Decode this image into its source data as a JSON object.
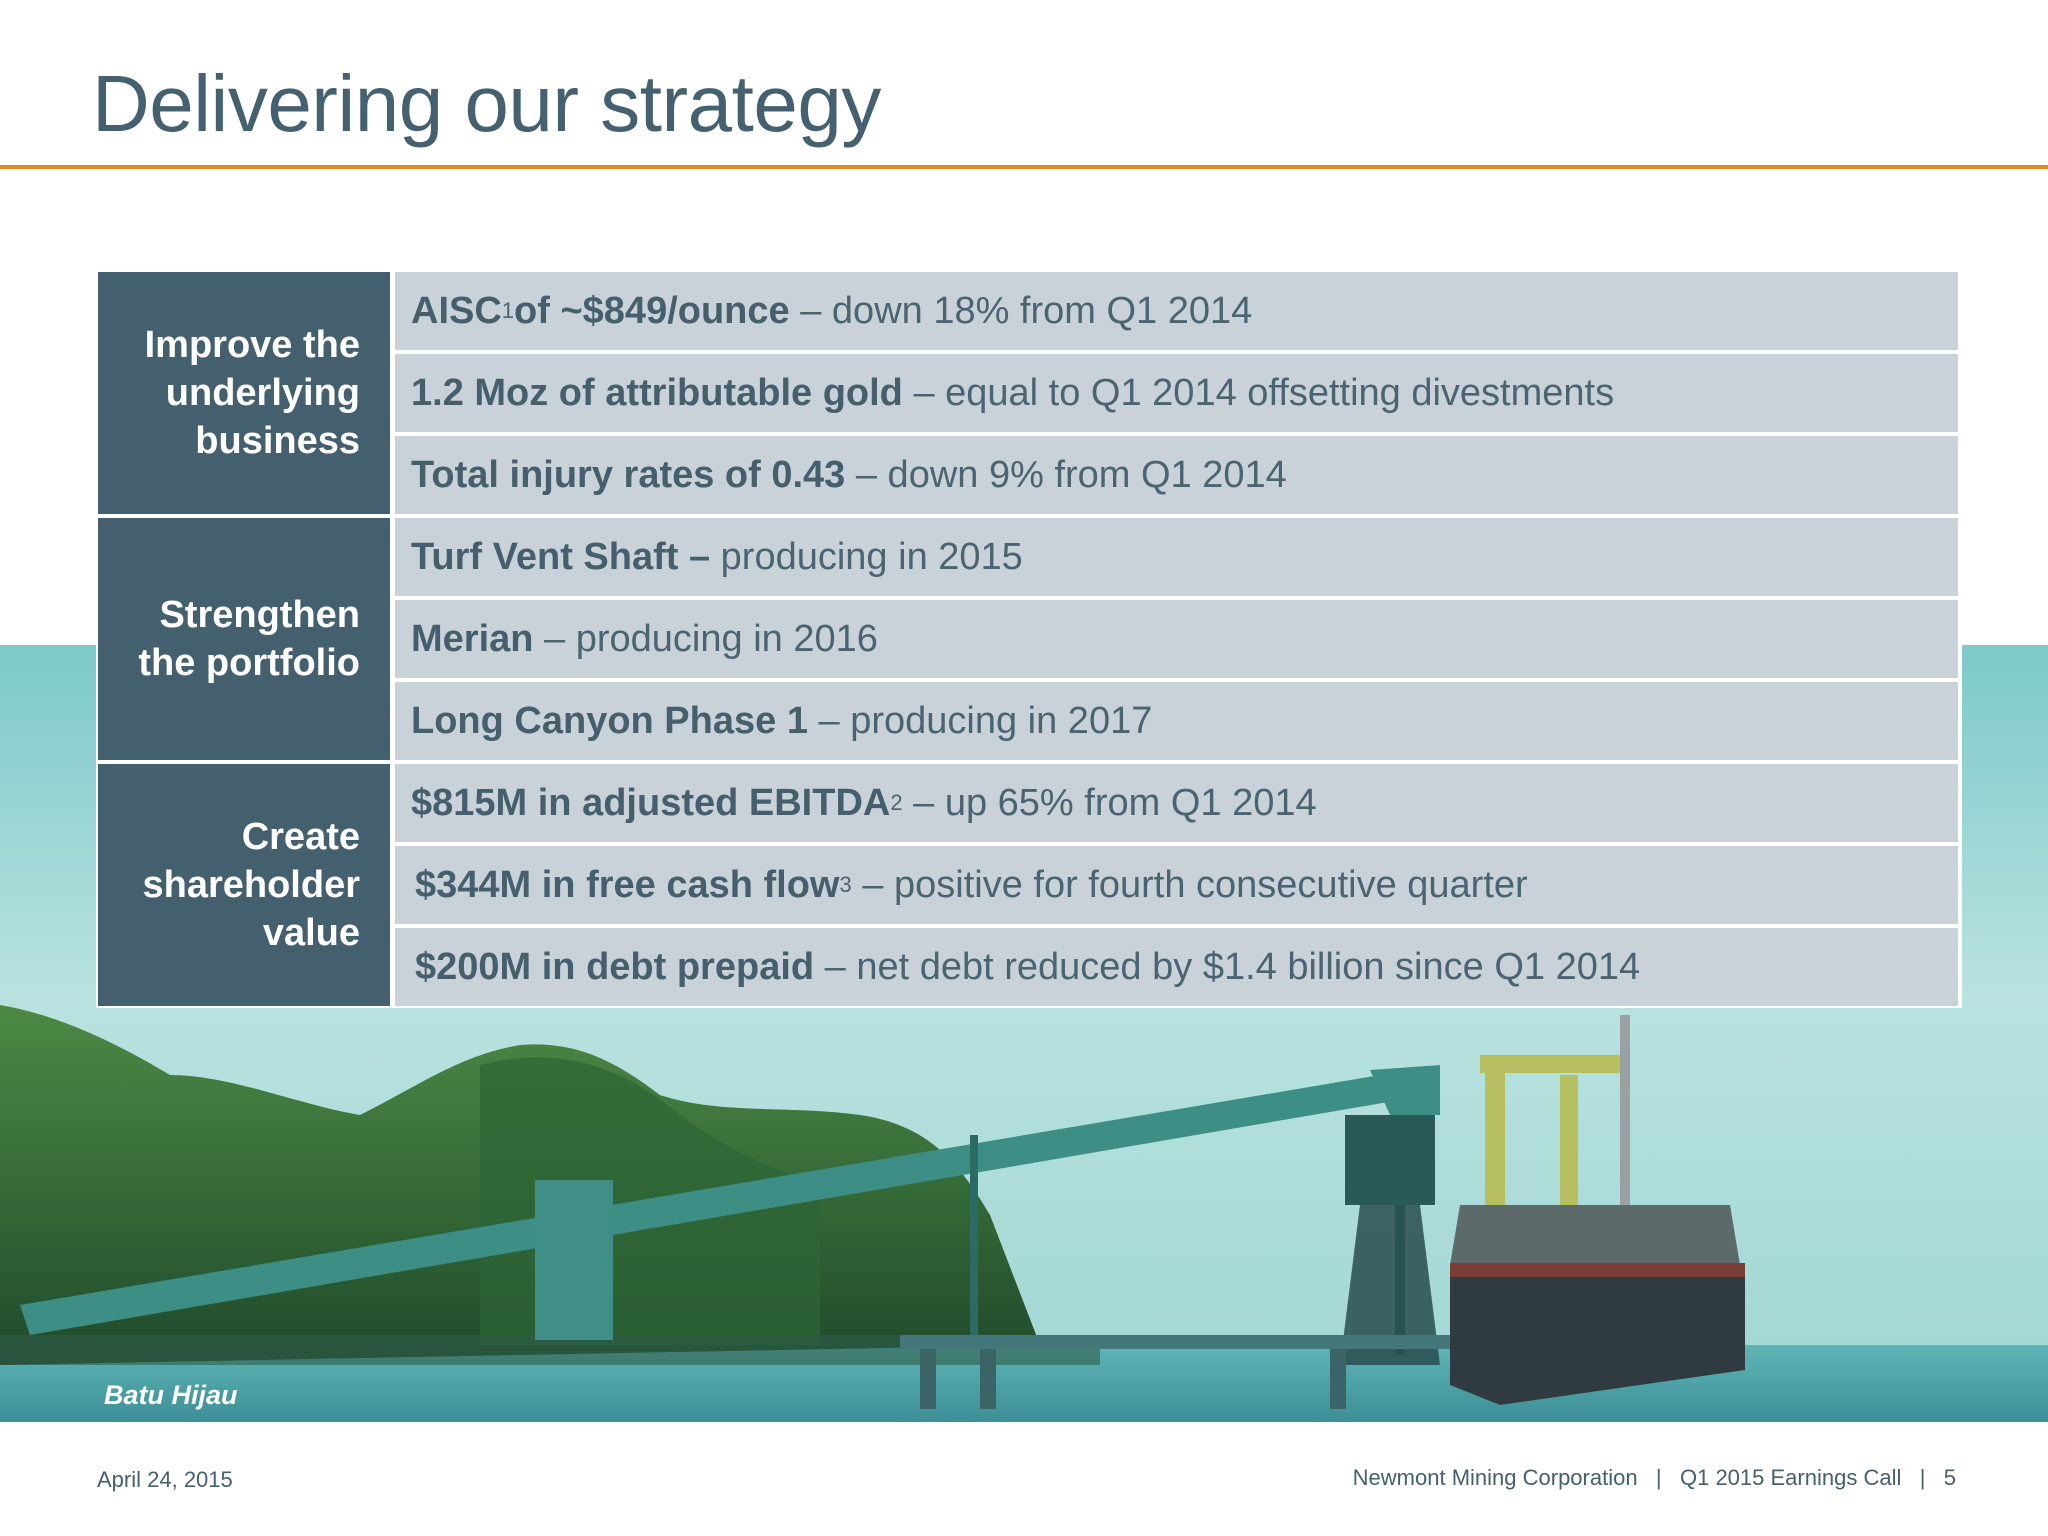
{
  "title": "Delivering our strategy",
  "groups": [
    {
      "category": "Improve the\nunderlying\nbusiness",
      "rows": [
        {
          "bold": "AISC",
          "sup": "1",
          "bold2": " of ~$849/ounce",
          "rest": " – down 18% from Q1 2014"
        },
        {
          "bold": "1.2 Moz of attributable gold",
          "sup": "",
          "bold2": "",
          "rest": " – equal to Q1 2014 offsetting divestments"
        },
        {
          "bold": "Total injury rates of 0.43",
          "sup": "",
          "bold2": "",
          "rest": " – down 9% from Q1 2014"
        }
      ]
    },
    {
      "category": "Strengthen\nthe portfolio",
      "rows": [
        {
          "bold": "Turf Vent Shaft –",
          "sup": "",
          "bold2": "",
          "rest": " producing in 2015"
        },
        {
          "bold": "Merian",
          "sup": "",
          "bold2": "",
          "rest": " – producing in 2016"
        },
        {
          "bold": "Long Canyon Phase 1",
          "sup": "",
          "bold2": "",
          "rest": " – producing in 2017"
        }
      ]
    },
    {
      "category": "Create\nshareholder\nvalue",
      "rows": [
        {
          "bold": "$815M in adjusted EBITDA",
          "sup": "2",
          "bold2": "",
          "rest": " – up 65% from Q1 2014"
        },
        {
          "bold": "$344M in free cash flow",
          "sup": "3",
          "bold2": "",
          "rest": " – positive for fourth consecutive quarter"
        },
        {
          "bold": "$200M in debt  prepaid",
          "sup": "",
          "bold2": "",
          "rest": " – net debt reduced by $1.4 billion since Q1 2014"
        }
      ]
    }
  ],
  "caption": "Batu Hijau",
  "footer": {
    "date": "April 24, 2015",
    "company": "Newmont Mining Corporation",
    "event": "Q1 2015 Earnings Call",
    "page": "5",
    "separator": "|"
  }
}
